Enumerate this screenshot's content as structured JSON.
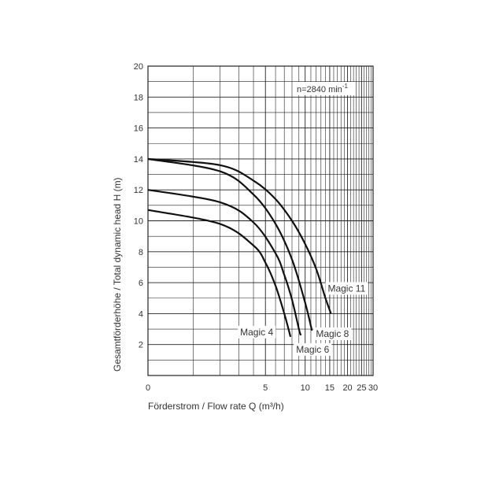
{
  "chart_data": {
    "type": "line",
    "x_scale": "log (x+1)",
    "xlabel": "Förderstrom / Flow rate   Q (m³/h)",
    "ylabel": "Gesamtförderhöhe  / Total dynamic head     H (m)",
    "xlim": [
      0,
      30
    ],
    "ylim": [
      0,
      20
    ],
    "x_ticks": [
      0,
      5,
      10,
      15,
      20,
      25,
      30
    ],
    "x_tick_labels": [
      "0",
      "5",
      "10",
      "15",
      "20",
      "25",
      "30"
    ],
    "y_ticks": [
      2,
      4,
      6,
      8,
      10,
      12,
      14,
      16,
      18,
      20
    ],
    "y_tick_labels": [
      "2",
      "4",
      "6",
      "8",
      "10",
      "12",
      "14",
      "16",
      "18",
      "20"
    ],
    "grid": true,
    "annotation": {
      "prefix": "n=2840 min",
      "sup": "-1"
    },
    "series": [
      {
        "name": "Magic 4",
        "x": [
          0,
          2,
          4,
          5,
          6,
          7,
          7.8
        ],
        "y": [
          10.7,
          9.8,
          8.4,
          7.3,
          5.8,
          4.0,
          2.5
        ]
      },
      {
        "name": "Magic 6",
        "x": [
          0,
          2,
          4,
          6,
          7,
          8,
          9,
          9.3
        ],
        "y": [
          12.0,
          11.2,
          9.9,
          7.9,
          6.5,
          4.9,
          3.0,
          2.6
        ]
      },
      {
        "name": "Magic 8",
        "x": [
          0,
          2,
          4,
          6,
          8,
          10,
          11.2
        ],
        "y": [
          14.0,
          13.2,
          11.7,
          9.8,
          7.5,
          4.7,
          2.9
        ]
      },
      {
        "name": "Magic 11",
        "x": [
          0,
          2,
          4,
          6,
          8,
          10,
          12,
          14,
          15.3
        ],
        "y": [
          14.0,
          13.6,
          12.6,
          11.4,
          10.0,
          8.5,
          6.9,
          5.0,
          4.0
        ]
      }
    ],
    "colors": {
      "curve": "#111111",
      "grid": "#222222",
      "text": "#333333",
      "background": "#ffffff"
    }
  }
}
